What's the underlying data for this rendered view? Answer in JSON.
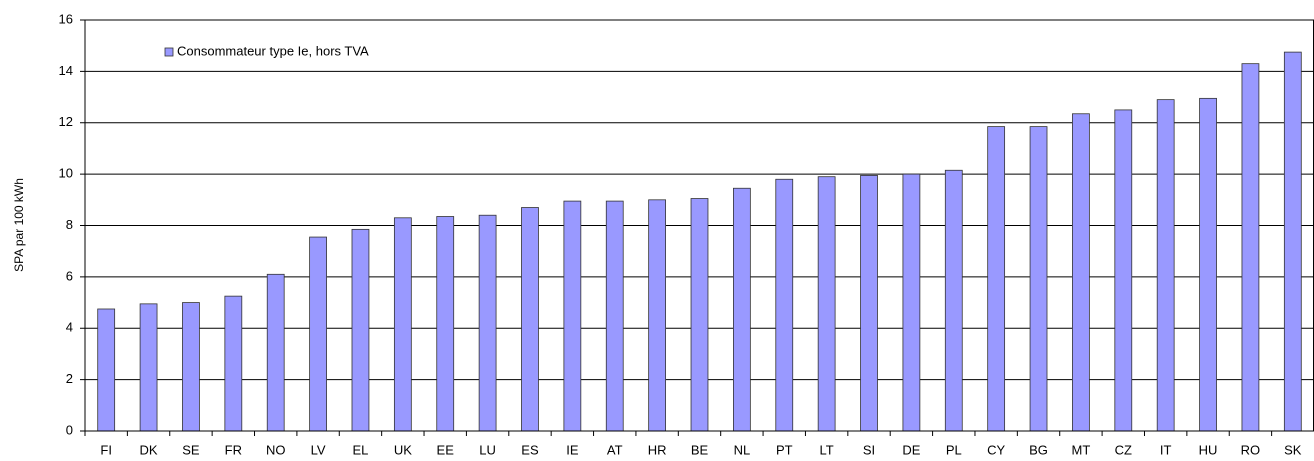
{
  "chart_data": {
    "type": "bar",
    "y_label": "SPA par 100 kWh",
    "categories": [
      "FI",
      "DK",
      "SE",
      "FR",
      "NO",
      "LV",
      "EL",
      "UK",
      "EE",
      "LU",
      "ES",
      "IE",
      "AT",
      "HR",
      "BE",
      "NL",
      "PT",
      "LT",
      "SI",
      "DE",
      "PL",
      "CY",
      "BG",
      "MT",
      "CZ",
      "IT",
      "HU",
      "RO",
      "SK"
    ],
    "series": [
      {
        "name": "Consommateur type Ie, hors TVA",
        "color": "#9999ff",
        "values": [
          4.75,
          4.95,
          5.0,
          5.25,
          6.1,
          7.55,
          7.85,
          8.3,
          8.35,
          8.4,
          8.7,
          8.95,
          8.95,
          9.0,
          9.05,
          9.45,
          9.8,
          9.9,
          9.95,
          10.0,
          10.15,
          11.85,
          11.85,
          12.35,
          12.5,
          12.9,
          12.95,
          14.3,
          14.75
        ]
      }
    ],
    "ylim": [
      0,
      16
    ],
    "yticks": [
      0,
      2,
      4,
      6,
      8,
      10,
      12,
      14,
      16
    ],
    "grid": true,
    "legend": "top-left"
  }
}
